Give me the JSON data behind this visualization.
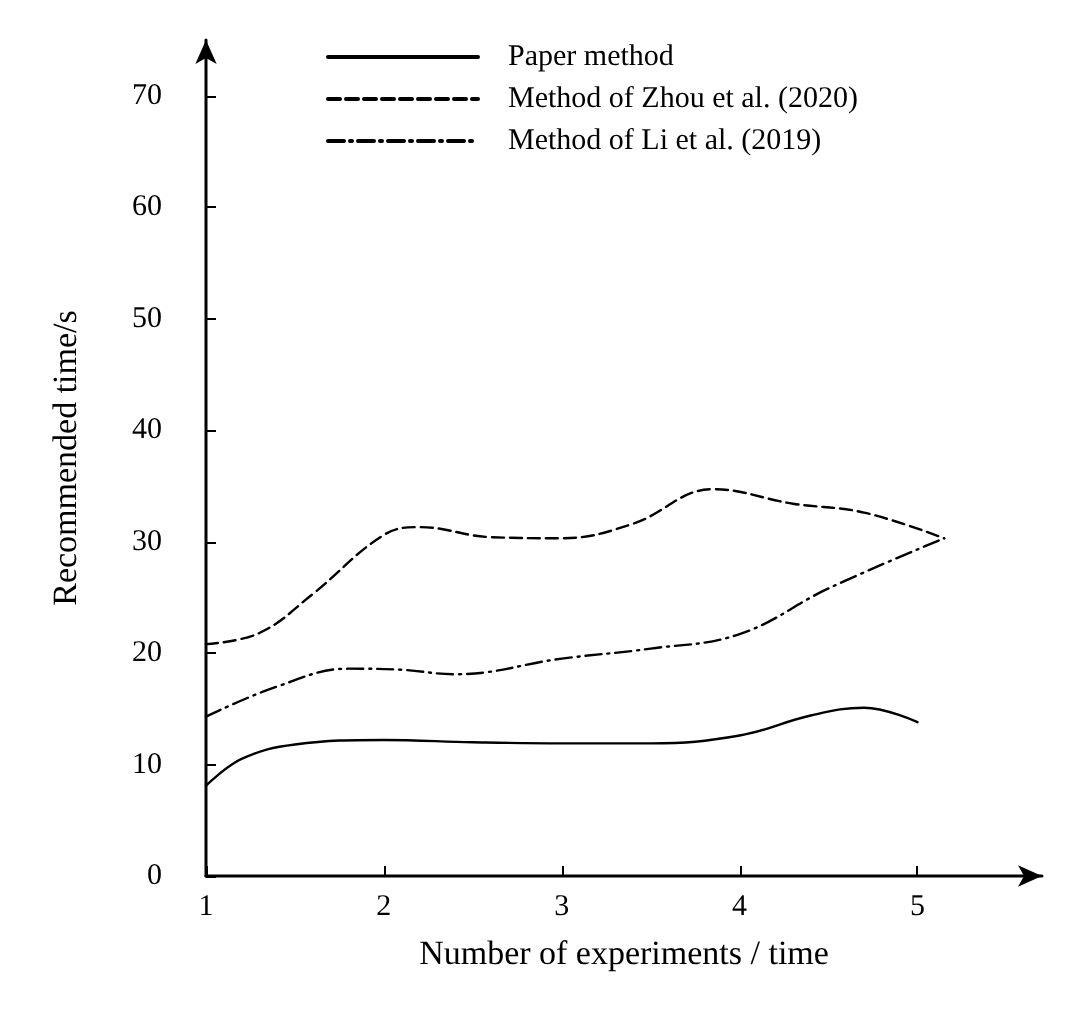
{
  "chart_data": {
    "type": "line",
    "xlabel": "Number of experiments / time",
    "ylabel": "Recommended time/s",
    "xlim": [
      1,
      5.7
    ],
    "xticks": [
      1,
      2,
      3,
      4,
      5
    ],
    "ylim": [
      0,
      75
    ],
    "yticks": [
      0,
      10,
      20,
      30,
      40,
      50,
      60,
      70
    ],
    "grid": false,
    "legend": "top",
    "marker": "none",
    "series": [
      {
        "name": "Paper method",
        "color": "#000000",
        "line_style": "solid",
        "x": [
          1,
          1.2,
          1.5,
          2,
          2.5,
          3,
          3.5,
          4,
          4.4,
          4.7,
          5
        ],
        "values": [
          8.1,
          10.5,
          11.8,
          12.2,
          12.0,
          11.9,
          11.9,
          12.6,
          14.4,
          15.1,
          13.8
        ]
      },
      {
        "name": "Method of Zhou et al. (2020)",
        "color": "#000000",
        "line_style": "dashed",
        "x": [
          1,
          1.3,
          1.6,
          2,
          2.2,
          2.6,
          3,
          3.4,
          3.85,
          4.3,
          4.7,
          5.15
        ],
        "values": [
          20.8,
          21.8,
          25.3,
          30.6,
          31.3,
          30.4,
          30.3,
          31.6,
          34.7,
          33.4,
          32.6,
          30.3
        ]
      },
      {
        "name": "Method of Li et al. (2019)",
        "color": "#000000",
        "line_style": "dashdot",
        "x": [
          1,
          1.4,
          1.8,
          2.1,
          2.4,
          3,
          3.5,
          4,
          4.5,
          5.15
        ],
        "values": [
          14.3,
          17.0,
          18.6,
          18.5,
          18.1,
          19.5,
          20.4,
          21.7,
          25.8,
          30.3
        ]
      }
    ]
  }
}
